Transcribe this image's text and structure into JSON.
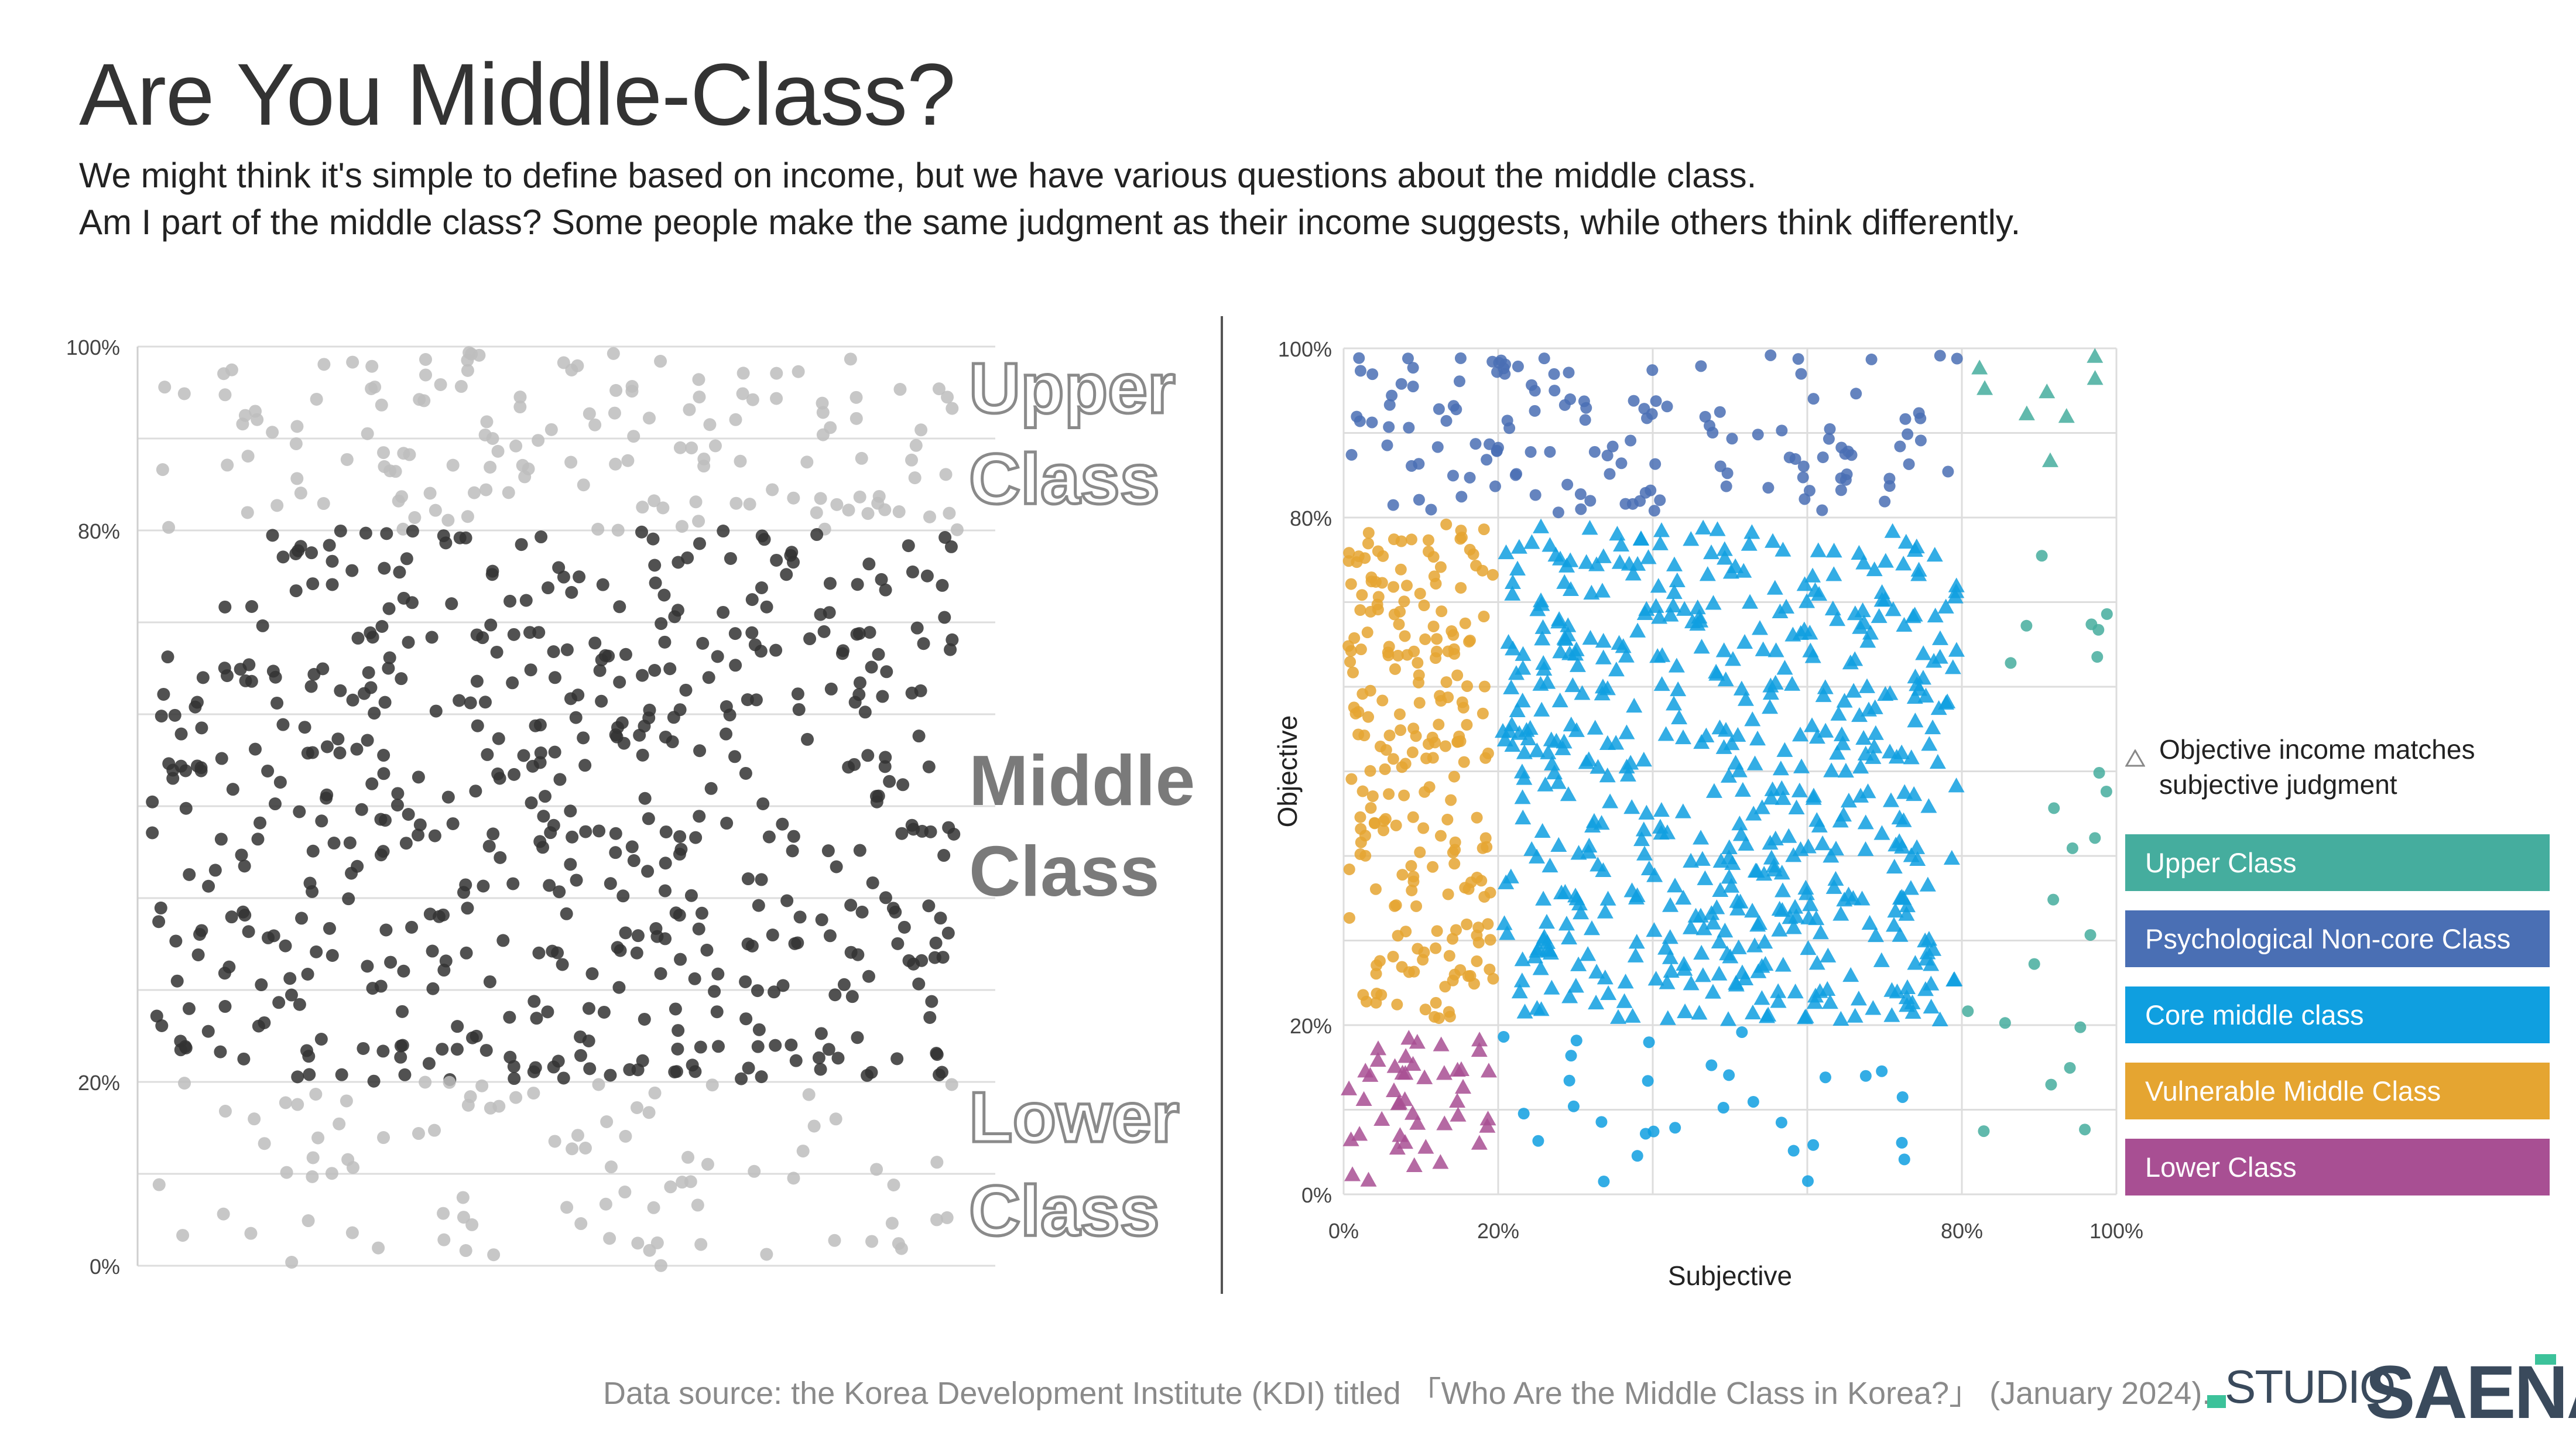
{
  "title": "Are You Middle-Class?",
  "subtitle_lines": [
    "We might think it's simple to define based on income, but we have various questions about the middle class.",
    "Am I part of the middle class? Some people make the same judgment as their income suggests, while others think differently."
  ],
  "colors": {
    "upper": "#45ad9e",
    "psych_noncore": "#4a6fb4",
    "core_middle": "#0f9fe0",
    "vulnerable": "#e5a531",
    "lower": "#a84f93",
    "dark_dot": "#333333",
    "light_dot": "#bdbdbd",
    "grid": "#dddddd"
  },
  "chart_data": [
    {
      "type": "scatter",
      "title": "",
      "xlabel": "",
      "ylabel": "",
      "ylim": [
        0,
        100
      ],
      "y_ticks": [
        "0%",
        "20%",
        "80%",
        "100%"
      ],
      "y_tick_values": [
        0,
        20,
        80,
        100
      ],
      "grid": true,
      "category_labels": [
        {
          "line1": "Upper",
          "line2": "Class",
          "style": "outline"
        },
        {
          "line1": "Middle",
          "line2": "Class",
          "style": "filled"
        },
        {
          "line1": "Lower",
          "line2": "Class",
          "style": "outline"
        }
      ],
      "series": [
        {
          "name": "Upper (80–100%)",
          "color": "light",
          "y_range": [
            80,
            100
          ],
          "count": 150
        },
        {
          "name": "Middle (20–80%)",
          "color": "dark",
          "y_range": [
            20,
            80
          ],
          "count": 560
        },
        {
          "name": "Lower (0–20%)",
          "color": "light",
          "y_range": [
            0,
            20
          ],
          "count": 90
        }
      ]
    },
    {
      "type": "scatter",
      "title": "",
      "xlabel": "Subjective",
      "ylabel": "Objective",
      "xlim": [
        0,
        100
      ],
      "ylim": [
        0,
        100
      ],
      "x_ticks": [
        "0%",
        "20%",
        "80%",
        "100%"
      ],
      "x_tick_values": [
        0,
        20,
        80,
        100
      ],
      "y_ticks": [
        "0%",
        "20%",
        "80%",
        "100%"
      ],
      "y_tick_values": [
        0,
        20,
        80,
        100
      ],
      "grid": true,
      "legend": {
        "note": [
          "Objective income matches",
          "subjective judgment"
        ],
        "entries": [
          "Upper Class",
          "Psychological Non-core Class",
          "Core middle class",
          "Vulnerable Middle Class",
          "Lower Class"
        ]
      },
      "series": [
        {
          "name": "Psychological Non-core Class",
          "marker": "circle",
          "x_range": [
            0,
            80
          ],
          "y_range": [
            80,
            100
          ],
          "count": 140
        },
        {
          "name": "Upper Class (match)",
          "marker": "triangle",
          "x_range": [
            80,
            100
          ],
          "y_range": [
            80,
            100
          ],
          "count": 8
        },
        {
          "name": "Upper Class (objective below)",
          "marker": "circle",
          "x_range": [
            80,
            100
          ],
          "y_range": [
            0,
            80
          ],
          "count": 22
        },
        {
          "name": "Vulnerable Middle Class",
          "marker": "circle",
          "x_range": [
            0,
            20
          ],
          "y_range": [
            20,
            80
          ],
          "count": 230
        },
        {
          "name": "Core middle class (match)",
          "marker": "triangle",
          "x_range": [
            20,
            80
          ],
          "y_range": [
            20,
            80
          ],
          "count": 560
        },
        {
          "name": "Core middle class (objective below)",
          "marker": "circle",
          "x_range": [
            20,
            80
          ],
          "y_range": [
            0,
            20
          ],
          "count": 30
        },
        {
          "name": "Lower Class (match)",
          "marker": "triangle",
          "x_range": [
            0,
            20
          ],
          "y_range": [
            0,
            20
          ],
          "count": 45
        }
      ]
    }
  ],
  "source": "Data source:  the Korea Development Institute (KDI) titled 「Who Are the Middle Class in Korea?」 (January 2024).",
  "logo": {
    "studio": "STUDIO",
    "saena": "SAENA"
  }
}
